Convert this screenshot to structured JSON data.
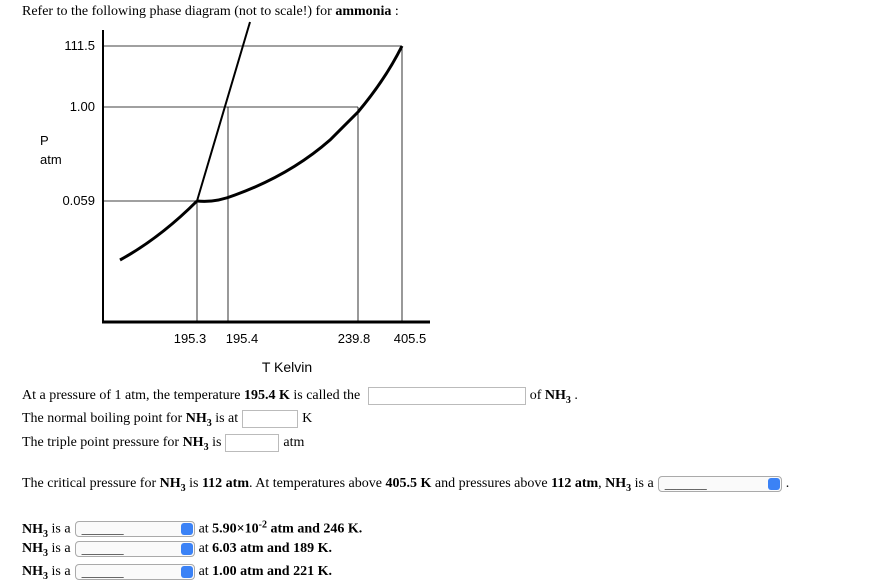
{
  "header": {
    "intro": "Refer to the following phase diagram (not to scale!) for ",
    "substance": "ammonia",
    "colon": " :"
  },
  "formula": {
    "main": "NH",
    "sub": "3"
  },
  "diagram": {
    "y_label_1": "P",
    "y_label_2": "atm",
    "y_ticks": [
      "111.5",
      "1.00",
      "0.059"
    ],
    "x_ticks": [
      "195.3",
      "195.4",
      "239.8",
      "405.5"
    ],
    "x_label": "T Kelvin"
  },
  "questions": {
    "q1": {
      "before": "At a pressure of 1 atm, the temperature ",
      "bold": "195.4 K",
      "middle": " is called the ",
      "after": "of ",
      "end": " ."
    },
    "q2": {
      "before": "The normal boiling point for ",
      "middle": " is at",
      "unit": "K"
    },
    "q3": {
      "before": "The triple point pressure for ",
      "middle": " is",
      "unit": "atm"
    },
    "q4": {
      "before": "The critical pressure for ",
      "p1": " is ",
      "b1": "112 atm",
      "p2": ". At temperatures above ",
      "b2": "405.5 K",
      "p3": " and pressures above ",
      "b3": "112 atm",
      "p4": ", ",
      "p5": " is a",
      "end": "."
    },
    "rows": [
      {
        "is": " is a",
        "at": "at ",
        "bold": "5.90×10",
        "sup": "-2",
        "rest": " atm and 246 K."
      },
      {
        "is": " is a",
        "at": "at ",
        "bold": "6.03 atm and 189 K."
      },
      {
        "is": " is a",
        "at": "at ",
        "bold": "1.00 atm and 221 K."
      }
    ],
    "placeholder": "_______"
  }
}
